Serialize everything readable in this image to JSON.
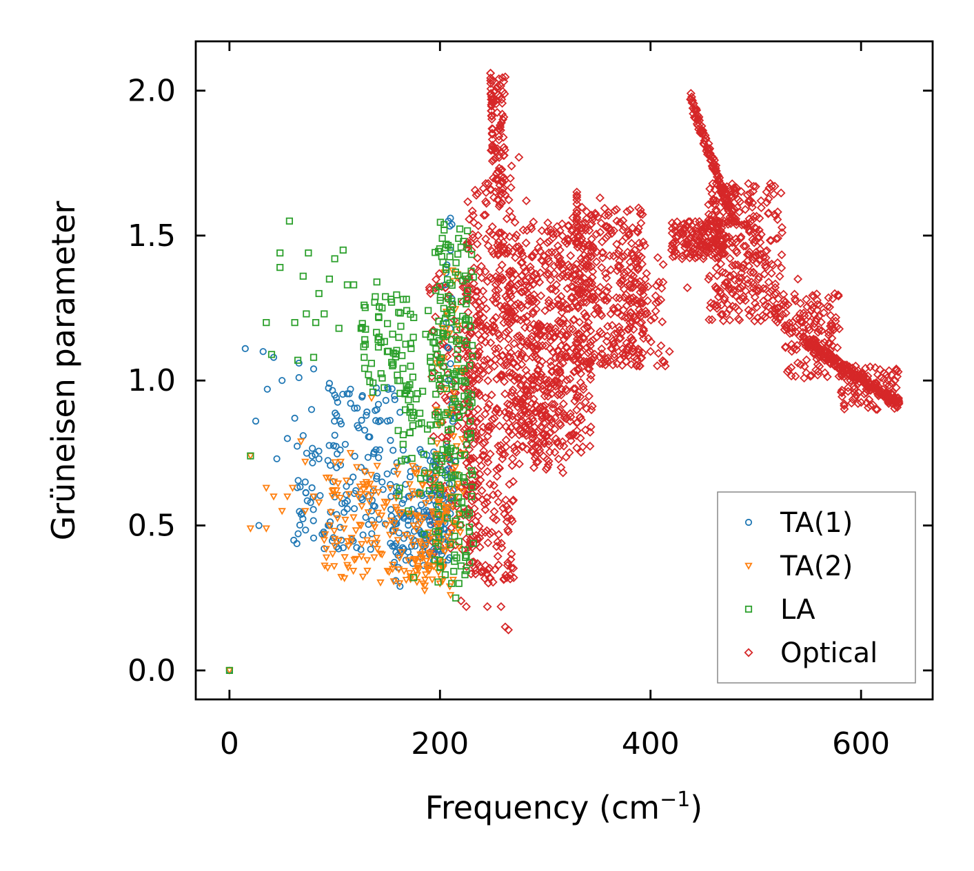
{
  "chart_data": {
    "type": "scatter",
    "title": "",
    "xlabel": "Frequency (cm",
    "xlabel_sup": "−1",
    "xlabel_suffix": ")",
    "ylabel": "Grüneisen parameter",
    "xlim": [
      -32,
      668
    ],
    "ylim": [
      -0.1,
      2.17
    ],
    "x_ticks": [
      0,
      200,
      400,
      600
    ],
    "x_tick_labels": [
      "0",
      "200",
      "400",
      "600"
    ],
    "y_ticks": [
      0.0,
      0.5,
      1.0,
      1.5,
      2.0
    ],
    "y_tick_labels": [
      "0.0",
      "0.5",
      "1.0",
      "1.5",
      "2.0"
    ],
    "grid": false,
    "legend_position": "lower-right",
    "series": [
      {
        "name": "TA(1)",
        "marker": "circle",
        "color": "#1f77b4",
        "anchor_points": [
          [
            0,
            0.0
          ],
          [
            15,
            1.11
          ],
          [
            25,
            0.86
          ],
          [
            28,
            0.5
          ],
          [
            32,
            1.1
          ],
          [
            36,
            0.97
          ],
          [
            42,
            1.08
          ],
          [
            45,
            0.73
          ],
          [
            50,
            1.0
          ],
          [
            55,
            0.8
          ],
          [
            62,
            0.87
          ],
          [
            66,
            1.06
          ],
          [
            66,
            1.01
          ],
          [
            70,
            0.81
          ],
          [
            72,
            0.65
          ],
          [
            78,
            0.9
          ],
          [
            80,
            1.04
          ],
          [
            85,
            0.73
          ],
          [
            88,
            0.47
          ],
          [
            90,
            0.42
          ],
          [
            95,
            0.99
          ],
          [
            95,
            0.5
          ],
          [
            100,
            0.95
          ],
          [
            105,
            0.86
          ],
          [
            110,
            0.78
          ],
          [
            115,
            0.97
          ],
          [
            120,
            0.62
          ],
          [
            125,
            0.7
          ],
          [
            130,
            0.88
          ],
          [
            135,
            0.55
          ],
          [
            140,
            0.9
          ],
          [
            145,
            0.65
          ],
          [
            150,
            0.86
          ],
          [
            155,
            0.48
          ],
          [
            158,
            0.31
          ],
          [
            162,
            0.29
          ],
          [
            165,
            0.76
          ],
          [
            170,
            0.6
          ],
          [
            175,
            0.45
          ],
          [
            180,
            0.55
          ],
          [
            185,
            0.68
          ],
          [
            190,
            0.4
          ],
          [
            195,
            0.62
          ],
          [
            200,
            0.5
          ],
          [
            205,
            1.33
          ],
          [
            206,
            1.2
          ],
          [
            208,
            1.55
          ],
          [
            208,
            1.0
          ],
          [
            210,
            1.45
          ],
          [
            212,
            0.6
          ],
          [
            215,
            0.72
          ]
        ],
        "clusters": [
          {
            "x": [
              60,
              210
            ],
            "y": [
              0.4,
              0.78
            ],
            "n": 170
          },
          {
            "x": [
              90,
              165
            ],
            "y": [
              0.78,
              0.98
            ],
            "n": 40
          },
          {
            "x": [
              150,
              210
            ],
            "y": [
              0.35,
              0.62
            ],
            "n": 80
          },
          {
            "x": [
              203,
              213
            ],
            "y": [
              0.5,
              1.58
            ],
            "n": 28
          }
        ]
      },
      {
        "name": "TA(2)",
        "marker": "triangle-down",
        "color": "#ff7f0e",
        "anchor_points": [
          [
            0,
            0.0
          ],
          [
            20,
            0.74
          ],
          [
            20,
            0.49
          ],
          [
            35,
            0.49
          ],
          [
            35,
            0.63
          ],
          [
            42,
            0.6
          ],
          [
            50,
            0.55
          ],
          [
            55,
            0.6
          ],
          [
            60,
            0.63
          ],
          [
            68,
            0.79
          ],
          [
            72,
            0.72
          ],
          [
            72,
            0.55
          ],
          [
            80,
            0.6
          ],
          [
            85,
            0.58
          ],
          [
            90,
            0.45
          ],
          [
            95,
            0.5
          ],
          [
            100,
            0.43
          ],
          [
            110,
            0.52
          ],
          [
            115,
            0.75
          ],
          [
            125,
            0.5
          ],
          [
            130,
            0.65
          ],
          [
            135,
            0.94
          ],
          [
            140,
            0.44
          ],
          [
            145,
            0.4
          ],
          [
            150,
            0.58
          ],
          [
            155,
            0.35
          ],
          [
            160,
            0.45
          ],
          [
            170,
            0.38
          ],
          [
            175,
            0.5
          ],
          [
            180,
            0.35
          ],
          [
            190,
            0.4
          ],
          [
            200,
            0.3
          ],
          [
            205,
            0.55
          ],
          [
            210,
            0.26
          ],
          [
            212,
            1.38
          ],
          [
            215,
            0.6
          ]
        ],
        "clusters": [
          {
            "x": [
              90,
              210
            ],
            "y": [
              0.3,
              0.72
            ],
            "n": 160
          },
          {
            "x": [
              175,
              220
            ],
            "y": [
              0.25,
              0.55
            ],
            "n": 60
          },
          {
            "x": [
              195,
              222
            ],
            "y": [
              0.55,
              1.4
            ],
            "n": 45
          }
        ]
      },
      {
        "name": "LA",
        "marker": "square",
        "color": "#2ca02c",
        "anchor_points": [
          [
            0,
            0.0
          ],
          [
            20,
            0.74
          ],
          [
            35,
            1.2
          ],
          [
            40,
            1.09
          ],
          [
            48,
            1.44
          ],
          [
            48,
            1.39
          ],
          [
            57,
            1.55
          ],
          [
            62,
            1.2
          ],
          [
            65,
            1.07
          ],
          [
            70,
            1.36
          ],
          [
            73,
            1.23
          ],
          [
            75,
            1.44
          ],
          [
            80,
            1.08
          ],
          [
            82,
            1.2
          ],
          [
            85,
            1.3
          ],
          [
            90,
            1.23
          ],
          [
            95,
            1.35
          ],
          [
            100,
            1.42
          ],
          [
            104,
            1.18
          ],
          [
            108,
            1.45
          ],
          [
            112,
            1.33
          ],
          [
            118,
            1.33
          ],
          [
            125,
            1.18
          ],
          [
            128,
            1.08
          ],
          [
            132,
            1.02
          ],
          [
            138,
            1.27
          ],
          [
            140,
            1.34
          ],
          [
            145,
            1.25
          ],
          [
            150,
            1.1
          ],
          [
            155,
            1.16
          ],
          [
            160,
            1.0
          ],
          [
            165,
            0.78
          ],
          [
            170,
            0.55
          ],
          [
            175,
            0.32
          ],
          [
            180,
            0.85
          ],
          [
            185,
            0.47
          ],
          [
            190,
            0.62
          ],
          [
            195,
            1.13
          ],
          [
            200,
            0.38
          ],
          [
            205,
            0.33
          ],
          [
            210,
            1.46
          ],
          [
            215,
            0.25
          ],
          [
            218,
            0.3
          ],
          [
            220,
            1.46
          ],
          [
            225,
            1.35
          ],
          [
            230,
            0.6
          ]
        ],
        "clusters": [
          {
            "x": [
              125,
              175
            ],
            "y": [
              0.95,
              1.3
            ],
            "n": 55
          },
          {
            "x": [
              160,
              200
            ],
            "y": [
              0.6,
              1.25
            ],
            "n": 55
          },
          {
            "x": [
              195,
              232
            ],
            "y": [
              0.3,
              1.55
            ],
            "n": 200
          }
        ]
      },
      {
        "name": "Optical",
        "marker": "diamond",
        "color": "#d62728",
        "anchor_points": [
          [
            205,
            1.32
          ],
          [
            210,
            0.95
          ],
          [
            215,
            1.15
          ],
          [
            220,
            0.24
          ],
          [
            225,
            0.22
          ],
          [
            232,
            0.95
          ],
          [
            240,
            0.34
          ],
          [
            245,
            0.22
          ],
          [
            248,
            2.06
          ],
          [
            250,
            1.97
          ],
          [
            252,
            1.8
          ],
          [
            258,
            0.22
          ],
          [
            262,
            0.15
          ],
          [
            265,
            0.14
          ],
          [
            268,
            1.74
          ],
          [
            270,
            0.32
          ],
          [
            275,
            1.77
          ],
          [
            282,
            1.62
          ],
          [
            290,
            1.44
          ],
          [
            298,
            0.79
          ],
          [
            302,
            0.7
          ],
          [
            315,
            0.7
          ],
          [
            330,
            1.65
          ],
          [
            335,
            1.54
          ],
          [
            340,
            1.3
          ],
          [
            352,
            1.63
          ],
          [
            360,
            1.57
          ],
          [
            368,
            1.55
          ],
          [
            375,
            1.53
          ],
          [
            385,
            1.45
          ],
          [
            395,
            1.35
          ],
          [
            410,
            1.12
          ],
          [
            414,
            1.05
          ],
          [
            418,
            1.1
          ],
          [
            420,
            1.45
          ],
          [
            430,
            1.42
          ],
          [
            435,
            1.32
          ],
          [
            438,
            1.97
          ],
          [
            445,
            1.9
          ],
          [
            460,
            1.62
          ],
          [
            470,
            1.55
          ],
          [
            478,
            1.3
          ],
          [
            490,
            1.59
          ],
          [
            498,
            1.67
          ],
          [
            505,
            1.62
          ],
          [
            515,
            1.37
          ],
          [
            522,
            1.25
          ],
          [
            530,
            1.03
          ],
          [
            535,
            1.2
          ],
          [
            540,
            1.35
          ],
          [
            548,
            1.28
          ],
          [
            560,
            1.08
          ],
          [
            575,
            1.05
          ],
          [
            590,
            1.0
          ],
          [
            605,
            0.97
          ],
          [
            620,
            0.95
          ],
          [
            636,
            0.92
          ]
        ],
        "clusters": [
          {
            "x": [
              190,
              240
            ],
            "y": [
              0.4,
              1.4
            ],
            "n": 200
          },
          {
            "x": [
              225,
              270
            ],
            "y": [
              0.3,
              1.7
            ],
            "n": 380
          },
          {
            "x": [
              248,
              262
            ],
            "y": [
              1.6,
              2.05
            ],
            "n": 80
          },
          {
            "x": [
              265,
              345
            ],
            "y": [
              0.75,
              1.55
            ],
            "n": 480
          },
          {
            "x": [
              275,
              320
            ],
            "y": [
              0.68,
              1.2
            ],
            "n": 130
          },
          {
            "x": [
              325,
              395
            ],
            "y": [
              1.05,
              1.6
            ],
            "n": 300
          },
          {
            "x": [
              380,
              414
            ],
            "y": [
              1.05,
              1.45
            ],
            "n": 60
          },
          {
            "x": [
              420,
              470
            ],
            "y": [
              1.42,
              1.55
            ],
            "n": 150
          },
          {
            "x": [
              455,
              525
            ],
            "y": [
              1.2,
              1.68
            ],
            "n": 300
          },
          {
            "x": [
              525,
              580
            ],
            "y": [
              1.0,
              1.3
            ],
            "n": 140
          },
          {
            "x": [
              580,
              636
            ],
            "y": [
              0.9,
              1.05
            ],
            "n": 90
          }
        ],
        "paths": [
          {
            "from": [
              438,
              1.97
            ],
            "to": [
              478,
              1.56
            ],
            "width": 0.05,
            "n": 110
          },
          {
            "from": [
              545,
              1.14
            ],
            "to": [
              636,
              0.92
            ],
            "width": 0.04,
            "n": 170
          },
          {
            "from": [
              330,
              1.64
            ],
            "to": [
              330,
              1.52
            ],
            "width": 0.02,
            "n": 12
          },
          {
            "from": [
              248,
              2.06
            ],
            "to": [
              250,
              1.8
            ],
            "width": 0.02,
            "n": 18
          }
        ]
      }
    ]
  }
}
